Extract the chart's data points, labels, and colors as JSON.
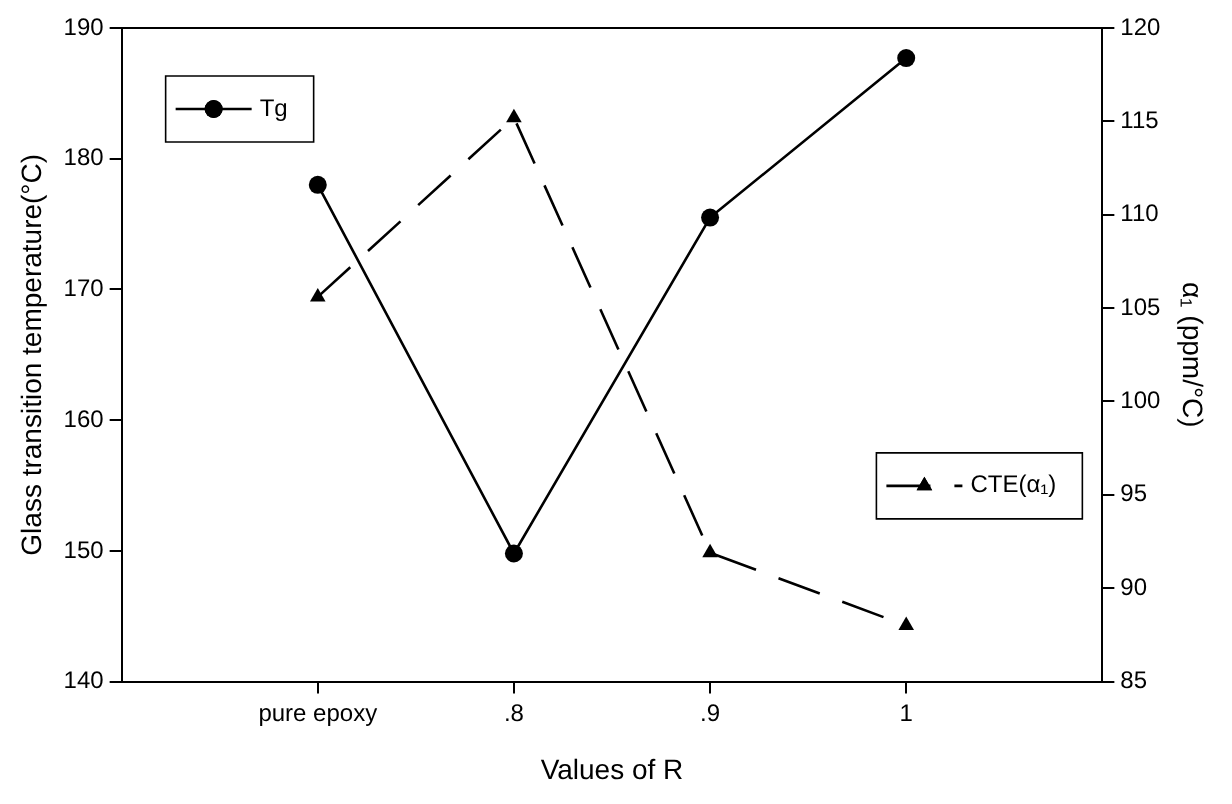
{
  "chart_data": {
    "type": "line",
    "xlabel": "Values of R",
    "ylabel": "Glass transition temperature(°C)",
    "y2label": "α₁ (ppm/°C)",
    "categories": [
      "pure epoxy",
      ".8",
      ".9",
      "1"
    ],
    "series": [
      {
        "name": "Tg",
        "color": "#000000",
        "values": [
          178,
          149.8,
          175.5,
          187.7
        ],
        "marker": "circle",
        "line_style": "solid"
      },
      {
        "name": "CTE(α₁)",
        "color": "#000000",
        "values": [
          105.6,
          115.2,
          91.9,
          88.0
        ],
        "marker": "triangle",
        "line_style": "dashed",
        "axis": "y2"
      }
    ],
    "ylim": [
      140,
      190
    ],
    "yticks": [
      140,
      150,
      160,
      170,
      180,
      190
    ],
    "y2lim": [
      85,
      120
    ],
    "y2ticks": [
      85,
      90,
      95,
      100,
      105,
      110,
      115,
      120
    ],
    "grid": false,
    "legend": "top left"
  }
}
